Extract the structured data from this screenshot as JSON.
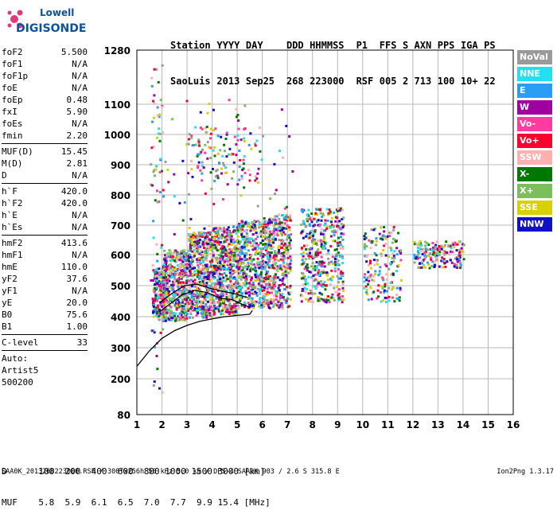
{
  "logo": {
    "line1": "Lowell",
    "line2": "DIGISONDE"
  },
  "header": {
    "labels": [
      "Station",
      "YYYY",
      "DAY",
      "DDD",
      "HHMMSS",
      "P1",
      "FFS",
      "S",
      "AXN",
      "PPS",
      "IGA",
      "PS"
    ],
    "values": [
      "SaoLuis",
      "2013",
      "Sep25",
      "268",
      "223000",
      "RSF",
      "005",
      "2",
      "713",
      "100",
      "10+",
      "22"
    ]
  },
  "params": [
    [
      {
        "name": "foF2",
        "value": "5.500"
      },
      {
        "name": "foF1",
        "value": "N/A"
      },
      {
        "name": "foF1p",
        "value": "N/A"
      },
      {
        "name": "foE",
        "value": "N/A"
      },
      {
        "name": "foEp",
        "value": "0.48"
      },
      {
        "name": "fxI",
        "value": "5.90"
      },
      {
        "name": "foEs",
        "value": "N/A"
      },
      {
        "name": "fmin",
        "value": "2.20"
      }
    ],
    [
      {
        "name": "MUF(D)",
        "value": "15.45"
      },
      {
        "name": "M(D)",
        "value": "2.81"
      },
      {
        "name": "D",
        "value": "N/A"
      }
    ],
    [
      {
        "name": "h`F",
        "value": "420.0"
      },
      {
        "name": "h`F2",
        "value": "420.0"
      },
      {
        "name": "h`E",
        "value": "N/A"
      },
      {
        "name": "h`Es",
        "value": "N/A"
      }
    ],
    [
      {
        "name": "hmF2",
        "value": "413.6"
      },
      {
        "name": "hmF1",
        "value": "N/A"
      },
      {
        "name": "hmE",
        "value": "110.0"
      },
      {
        "name": "yF2",
        "value": "37.6"
      },
      {
        "name": "yF1",
        "value": "N/A"
      },
      {
        "name": "yE",
        "value": "20.0"
      },
      {
        "name": "B0",
        "value": "75.6"
      },
      {
        "name": "B1",
        "value": "1.00"
      }
    ],
    [
      {
        "name": "C-level",
        "value": "33"
      }
    ]
  ],
  "extra_lines": [
    "Auto:",
    "Artist5",
    "500200"
  ],
  "legend": [
    {
      "label": "NoVal",
      "color": "#9a9a9a"
    },
    {
      "label": "NNE",
      "color": "#22e0f0"
    },
    {
      "label": "E",
      "color": "#2a9df4"
    },
    {
      "label": "W",
      "color": "#a000a0"
    },
    {
      "label": "Vo-",
      "color": "#ff3aa0"
    },
    {
      "label": "Vo+",
      "color": "#ff0030"
    },
    {
      "label": "SSW",
      "color": "#ffb0b0"
    },
    {
      "label": "X-",
      "color": "#007800"
    },
    {
      "label": "X+",
      "color": "#7cbf5a"
    },
    {
      "label": "SSE",
      "color": "#d8d000"
    },
    {
      "label": "NNW",
      "color": "#1010c8"
    }
  ],
  "mufTable": {
    "row1": "D      100  200  400  600  800 1000 1500 3000 [km]",
    "row2": "MUF    5.8  5.9  6.1  6.5  7.0  7.7  9.9 15.4 [MHz]"
  },
  "footer": "SAA0K_2013268223000.RSF / 300fx256h 50 kHz 5.0 km / DPS-4 SAA0K 903 / 2.6 S 315.8 E",
  "version": "Ion2Png 1.3.17",
  "chart_data": {
    "type": "scatter",
    "xlim": [
      1,
      16
    ],
    "ylim": [
      80,
      1280
    ],
    "xticks": [
      "1",
      "2",
      "3",
      "4",
      "5",
      "6",
      "7",
      "8",
      "9",
      "10",
      "11",
      "12",
      "13",
      "14",
      "15",
      "16"
    ],
    "yticks": [
      "80",
      "200",
      "300",
      "400",
      "500",
      "600",
      "700",
      "800",
      "900",
      "1000",
      "1100",
      "1280"
    ],
    "ytick_values": [
      80,
      200,
      300,
      400,
      500,
      600,
      700,
      800,
      900,
      1000,
      1100,
      1280
    ],
    "grid": true,
    "legend_position": "right",
    "clusters": [
      {
        "x": [
          1.6,
          2.1
        ],
        "y": [
          400,
          560
        ],
        "n": 220
      },
      {
        "x": [
          2.0,
          3.0
        ],
        "y": [
          390,
          620
        ],
        "n": 450
      },
      {
        "x": [
          3.0,
          4.0
        ],
        "y": [
          400,
          680
        ],
        "n": 500
      },
      {
        "x": [
          4.0,
          5.0
        ],
        "y": [
          410,
          700
        ],
        "n": 500
      },
      {
        "x": [
          5.0,
          6.0
        ],
        "y": [
          430,
          720
        ],
        "n": 420
      },
      {
        "x": [
          6.0,
          7.1
        ],
        "y": [
          430,
          740
        ],
        "n": 420
      },
      {
        "x": [
          7.5,
          9.2
        ],
        "y": [
          450,
          760
        ],
        "n": 420
      },
      {
        "x": [
          10.0,
          11.5
        ],
        "y": [
          450,
          700
        ],
        "n": 170
      },
      {
        "x": [
          12.0,
          14.0
        ],
        "y": [
          560,
          650
        ],
        "n": 180
      },
      {
        "x": [
          3.0,
          6.0
        ],
        "y": [
          850,
          1030
        ],
        "n": 120
      },
      {
        "x": [
          1.8,
          7.2
        ],
        "y": [
          600,
          1120
        ],
        "n": 90
      },
      {
        "x": [
          1.5,
          2.0
        ],
        "y": [
          150,
          1260
        ],
        "n": 70
      }
    ],
    "profile_lines": [
      {
        "points": [
          [
            1.0,
            240
          ],
          [
            1.5,
            290
          ],
          [
            2.0,
            330
          ],
          [
            2.5,
            355
          ],
          [
            3.0,
            372
          ],
          [
            3.5,
            385
          ],
          [
            4.0,
            393
          ],
          [
            4.5,
            400
          ],
          [
            5.0,
            404
          ],
          [
            5.5,
            408
          ],
          [
            5.6,
            420
          ]
        ]
      },
      {
        "points": [
          [
            1.9,
            415
          ],
          [
            2.3,
            440
          ],
          [
            2.8,
            470
          ],
          [
            3.3,
            485
          ],
          [
            3.8,
            478
          ],
          [
            4.3,
            460
          ],
          [
            4.8,
            455
          ],
          [
            5.2,
            440
          ],
          [
            5.5,
            430
          ]
        ]
      },
      {
        "points": [
          [
            1.9,
            445
          ],
          [
            2.4,
            475
          ],
          [
            2.9,
            500
          ],
          [
            3.4,
            505
          ],
          [
            3.9,
            492
          ],
          [
            4.4,
            482
          ],
          [
            4.9,
            474
          ],
          [
            5.4,
            462
          ]
        ]
      }
    ]
  }
}
